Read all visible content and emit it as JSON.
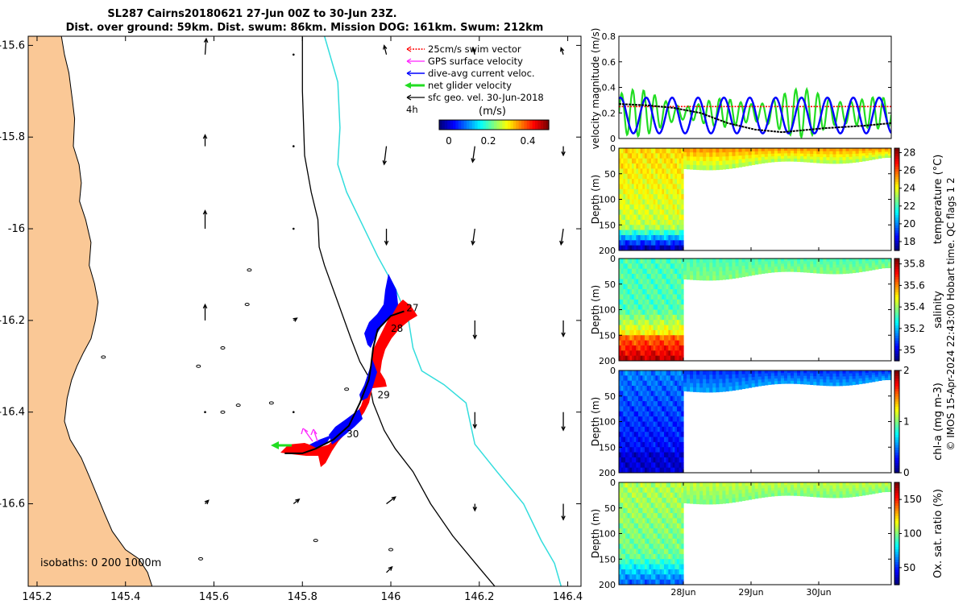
{
  "title_line1": "SL287 Cairns20180621 27-Jun 00Z to 30-Jun 23Z.",
  "title_line2": "Dist. over ground: 59km. Dist. swum: 86km. Mission DOG: 161km. Swum: 212km",
  "credit": "© IMOS 15-Apr-2024 22:43:00 Hobart time. QC flags 1  2",
  "colors": {
    "land": "#fac896",
    "coast": "#000000",
    "isobath200": "#000000",
    "isobath1000": "#33dddd",
    "red": "#ff0000",
    "blue": "#0000ff",
    "green": "#22dd22",
    "magenta": "#ff22ff",
    "black": "#000000"
  },
  "chart_data": [
    {
      "type": "scatter",
      "name": "map",
      "xlim": [
        145.18,
        146.43
      ],
      "ylim": [
        -16.78,
        -15.58
      ],
      "xticks": [
        145.2,
        145.4,
        145.6,
        145.8,
        146,
        146.2,
        146.4
      ],
      "xtick_labels": [
        "145.2",
        "145.4",
        "145.6",
        "145.8",
        "146",
        "146.2",
        "146.4"
      ],
      "yticks": [
        -15.6,
        -15.8,
        -16,
        -16.2,
        -16.4,
        -16.6
      ],
      "ytick_labels": [
        "-15.6",
        "-15.8",
        "-16",
        "-16.2",
        "-16.4",
        "-16.6"
      ],
      "legend": {
        "position": "top-right",
        "entries": [
          {
            "label": "25cm/s swim vector",
            "color": "#ff0000",
            "style": "dotted-arrow"
          },
          {
            "label": "GPS surface velocity",
            "color": "#ff22ff",
            "style": "arrow"
          },
          {
            "label": "dive-avg current veloc.",
            "color": "#0000ff",
            "style": "arrow"
          },
          {
            "label": "net glider velocity",
            "color": "#22dd22",
            "style": "thick-arrow"
          },
          {
            "label": "sfc geo. vel. 30-Jun-2018",
            "color": "#000000",
            "style": "arrow"
          }
        ],
        "scale_label": "4h"
      },
      "colorbar": {
        "label": "(m/s)",
        "ticks": [
          0,
          0.2,
          0.4
        ],
        "tick_labels": [
          "0",
          "0.2",
          "0.4"
        ],
        "range": [
          -0.05,
          0.5
        ]
      },
      "isobath_label": "isobaths: 0   200  1000m",
      "coastline": [
        [
          145.18,
          -15.58
        ],
        [
          145.255,
          -15.58
        ],
        [
          145.262,
          -15.62
        ],
        [
          145.272,
          -15.66
        ],
        [
          145.28,
          -15.72
        ],
        [
          145.285,
          -15.76
        ],
        [
          145.282,
          -15.82
        ],
        [
          145.295,
          -15.86
        ],
        [
          145.3,
          -15.9
        ],
        [
          145.296,
          -15.94
        ],
        [
          145.31,
          -15.98
        ],
        [
          145.322,
          -16.03
        ],
        [
          145.318,
          -16.08
        ],
        [
          145.33,
          -16.12
        ],
        [
          145.338,
          -16.16
        ],
        [
          145.332,
          -16.2
        ],
        [
          145.322,
          -16.24
        ],
        [
          145.305,
          -16.27
        ],
        [
          145.29,
          -16.3
        ],
        [
          145.278,
          -16.33
        ],
        [
          145.268,
          -16.37
        ],
        [
          145.262,
          -16.42
        ],
        [
          145.275,
          -16.46
        ],
        [
          145.3,
          -16.5
        ],
        [
          145.318,
          -16.54
        ],
        [
          145.335,
          -16.58
        ],
        [
          145.352,
          -16.62
        ],
        [
          145.37,
          -16.66
        ],
        [
          145.4,
          -16.7
        ],
        [
          145.43,
          -16.72
        ],
        [
          145.45,
          -16.75
        ],
        [
          145.46,
          -16.78
        ],
        [
          145.18,
          -16.78
        ]
      ],
      "isobath_200": [
        [
          145.8,
          -15.58
        ],
        [
          145.8,
          -15.7
        ],
        [
          145.805,
          -15.84
        ],
        [
          145.82,
          -15.92
        ],
        [
          145.835,
          -15.98
        ],
        [
          145.838,
          -16.04
        ],
        [
          145.85,
          -16.08
        ],
        [
          145.88,
          -16.16
        ],
        [
          145.91,
          -16.24
        ],
        [
          145.93,
          -16.29
        ],
        [
          145.948,
          -16.32
        ],
        [
          145.96,
          -16.38
        ],
        [
          145.985,
          -16.44
        ],
        [
          146.01,
          -16.48
        ],
        [
          146.05,
          -16.53
        ],
        [
          146.09,
          -16.6
        ],
        [
          146.14,
          -16.67
        ],
        [
          146.2,
          -16.74
        ],
        [
          146.235,
          -16.78
        ]
      ],
      "isobath_1000": [
        [
          145.85,
          -15.58
        ],
        [
          145.88,
          -15.68
        ],
        [
          145.885,
          -15.78
        ],
        [
          145.88,
          -15.86
        ],
        [
          145.9,
          -15.92
        ],
        [
          145.93,
          -15.98
        ],
        [
          145.97,
          -16.06
        ],
        [
          146.01,
          -16.13
        ],
        [
          146.04,
          -16.2
        ],
        [
          146.05,
          -16.26
        ],
        [
          146.07,
          -16.31
        ],
        [
          146.12,
          -16.34
        ],
        [
          146.17,
          -16.38
        ],
        [
          146.19,
          -16.47
        ],
        [
          146.24,
          -16.53
        ],
        [
          146.3,
          -16.6
        ],
        [
          146.34,
          -16.68
        ],
        [
          146.37,
          -16.73
        ],
        [
          146.385,
          -16.78
        ]
      ],
      "islands": [
        [
          145.68,
          -16.09
        ],
        [
          145.675,
          -16.165
        ],
        [
          145.62,
          -16.26
        ],
        [
          145.565,
          -16.3
        ],
        [
          145.73,
          -16.38
        ],
        [
          145.655,
          -16.385
        ],
        [
          145.62,
          -16.4
        ],
        [
          145.35,
          -16.28
        ],
        [
          145.57,
          -16.72
        ],
        [
          145.9,
          -16.35
        ],
        [
          146.0,
          -16.7
        ],
        [
          145.83,
          -16.68
        ]
      ],
      "track": [
        [
          146.03,
          -16.18
        ],
        [
          146.0,
          -16.19
        ],
        [
          145.97,
          -16.22
        ],
        [
          145.96,
          -16.26
        ],
        [
          145.955,
          -16.3
        ],
        [
          145.95,
          -16.33
        ],
        [
          145.93,
          -16.38
        ],
        [
          145.905,
          -16.43
        ],
        [
          145.87,
          -16.46
        ],
        [
          145.83,
          -16.48
        ],
        [
          145.8,
          -16.49
        ],
        [
          145.76,
          -16.49
        ]
      ],
      "track_labels": [
        {
          "text": "27",
          "x": 146.035,
          "y": -16.18
        },
        {
          "text": "28",
          "x": 146.0,
          "y": -16.225
        },
        {
          "text": "29",
          "x": 145.97,
          "y": -16.37
        },
        {
          "text": "30",
          "x": 145.9,
          "y": -16.455
        }
      ],
      "geo_vectors": [
        {
          "x": 145.58,
          "y": -15.62,
          "u": 0.01,
          "v": 0.14
        },
        {
          "x": 145.58,
          "y": -15.82,
          "u": 0.0,
          "v": 0.1
        },
        {
          "x": 145.58,
          "y": -16.0,
          "u": 0.0,
          "v": 0.16
        },
        {
          "x": 145.58,
          "y": -16.2,
          "u": 0.0,
          "v": 0.14
        },
        {
          "x": 145.58,
          "y": -16.4,
          "u": 0.02,
          "v": 0.0
        },
        {
          "x": 145.58,
          "y": -16.6,
          "u": 0.03,
          "v": 0.03
        },
        {
          "x": 145.78,
          "y": -15.62,
          "u": 0.0,
          "v": 0.02
        },
        {
          "x": 145.78,
          "y": -15.82,
          "u": 0.02,
          "v": 0.0
        },
        {
          "x": 145.78,
          "y": -16.0,
          "u": 0.0,
          "v": 0.0
        },
        {
          "x": 145.78,
          "y": -16.2,
          "u": 0.03,
          "v": 0.02
        },
        {
          "x": 145.78,
          "y": -16.4,
          "u": 0.0,
          "v": 0.02
        },
        {
          "x": 145.78,
          "y": -16.6,
          "u": 0.05,
          "v": 0.04
        },
        {
          "x": 145.99,
          "y": -15.62,
          "u": -0.02,
          "v": 0.08
        },
        {
          "x": 145.99,
          "y": -15.82,
          "u": -0.02,
          "v": -0.16
        },
        {
          "x": 145.99,
          "y": -16.0,
          "u": 0.0,
          "v": -0.14
        },
        {
          "x": 145.99,
          "y": -16.6,
          "u": 0.08,
          "v": 0.06
        },
        {
          "x": 145.99,
          "y": -16.75,
          "u": 0.05,
          "v": 0.05
        },
        {
          "x": 146.19,
          "y": -15.62,
          "u": -0.02,
          "v": 0.06
        },
        {
          "x": 146.19,
          "y": -15.82,
          "u": -0.02,
          "v": -0.14
        },
        {
          "x": 146.19,
          "y": -16.0,
          "u": -0.02,
          "v": -0.14
        },
        {
          "x": 146.19,
          "y": -16.2,
          "u": 0.0,
          "v": -0.16
        },
        {
          "x": 146.19,
          "y": -16.4,
          "u": 0.0,
          "v": -0.14
        },
        {
          "x": 146.19,
          "y": -16.6,
          "u": 0.0,
          "v": -0.06
        },
        {
          "x": 146.39,
          "y": -15.62,
          "u": -0.02,
          "v": 0.06
        },
        {
          "x": 146.39,
          "y": -15.82,
          "u": 0.0,
          "v": -0.08
        },
        {
          "x": 146.39,
          "y": -16.0,
          "u": -0.02,
          "v": -0.14
        },
        {
          "x": 146.39,
          "y": -16.2,
          "u": 0.0,
          "v": -0.14
        },
        {
          "x": 146.39,
          "y": -16.4,
          "u": 0.0,
          "v": -0.16
        },
        {
          "x": 146.39,
          "y": -16.6,
          "u": 0.0,
          "v": -0.14
        }
      ]
    },
    {
      "type": "line",
      "name": "velocity-magnitude",
      "ylabel": "velocity magnitude (m/s)",
      "ylim": [
        0,
        0.8
      ],
      "yticks": [
        0,
        0.2,
        0.4,
        0.6,
        0.8
      ],
      "ytick_labels": [
        "0",
        "0.2",
        "0.4",
        "0.6",
        "0.8"
      ],
      "xlim": [
        0,
        4
      ],
      "series": [
        {
          "name": "swim speed",
          "color": "#ff0000",
          "constant": 0.25
        },
        {
          "name": "dive-avg current",
          "color": "#0000ff",
          "amplitude": 0.14,
          "mean": 0.18,
          "period": 0.38
        },
        {
          "name": "net glider",
          "color": "#22dd22",
          "amplitude": 0.15,
          "mean": 0.2,
          "period": 0.16
        },
        {
          "name": "sfc geo",
          "color": "#000000",
          "x": [
            0,
            0.4,
            0.8,
            1.2,
            1.6,
            2.0,
            2.4,
            3.0,
            3.6,
            4.0
          ],
          "values": [
            0.27,
            0.26,
            0.24,
            0.2,
            0.12,
            0.07,
            0.05,
            0.08,
            0.1,
            0.12
          ]
        }
      ]
    },
    {
      "type": "heatmap",
      "name": "temperature",
      "ylabel": "Depth (m)",
      "yticks": [
        0,
        50,
        100,
        150,
        200
      ],
      "ytick_labels": [
        "0",
        "50",
        "100",
        "150",
        "200"
      ],
      "cbar_label": "temperature (°C)",
      "cbar_range": [
        17,
        28.5
      ],
      "cbar_ticks": [
        18,
        20,
        22,
        24,
        26,
        28
      ],
      "cbar_tick_labels": [
        "18",
        "20",
        "22",
        "24",
        "26",
        "28"
      ]
    },
    {
      "type": "heatmap",
      "name": "salinity",
      "ylabel": "Depth (m)",
      "yticks": [
        0,
        50,
        100,
        150,
        200
      ],
      "ytick_labels": [
        "0",
        "50",
        "100",
        "150",
        "200"
      ],
      "cbar_label": "salinity",
      "cbar_range": [
        34.9,
        35.85
      ],
      "cbar_ticks": [
        35,
        35.2,
        35.4,
        35.6,
        35.8
      ],
      "cbar_tick_labels": [
        "35",
        "35.2",
        "35.4",
        "35.6",
        "35.8"
      ]
    },
    {
      "type": "heatmap",
      "name": "chlorophyll",
      "ylabel": "Depth (m)",
      "yticks": [
        0,
        50,
        100,
        150,
        200
      ],
      "ytick_labels": [
        "0",
        "50",
        "100",
        "150",
        "200"
      ],
      "cbar_label": "chl-a (mg m-3)",
      "cbar_range": [
        0,
        2
      ],
      "cbar_ticks": [
        0,
        1,
        2
      ],
      "cbar_tick_labels": [
        "0",
        "1",
        "2"
      ]
    },
    {
      "type": "heatmap",
      "name": "oxygen",
      "ylabel": "Depth (m)",
      "yticks": [
        0,
        50,
        100,
        150,
        200
      ],
      "ytick_labels": [
        "0",
        "50",
        "100",
        "150",
        "200"
      ],
      "cbar_label": "Ox. sat. ratio (%)",
      "cbar_range": [
        25,
        175
      ],
      "cbar_ticks": [
        50,
        100,
        150
      ],
      "cbar_tick_labels": [
        "50",
        "100",
        "150"
      ],
      "xticks": [
        1,
        2,
        3
      ],
      "xtick_labels": [
        "28Jun",
        "29Jun",
        "30Jun"
      ]
    }
  ]
}
